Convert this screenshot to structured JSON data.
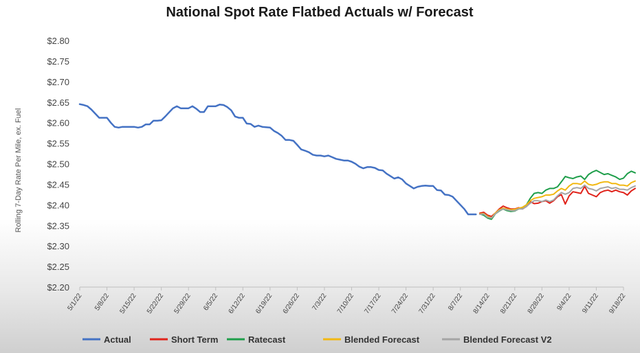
{
  "chart_data": {
    "type": "line",
    "title": "National Spot Rate Flatbed Actuals w/ Forecast",
    "xlabel": "",
    "ylabel": "Rolling 7-Day Rate Per Mile, ex. Fuel",
    "ylim": [
      2.2,
      2.8
    ],
    "y_tick_labels": [
      "$2.20",
      "$2.25",
      "$2.30",
      "$2.35",
      "$2.40",
      "$2.45",
      "$2.50",
      "$2.55",
      "$2.60",
      "$2.65",
      "$2.70",
      "$2.75",
      "$2.80"
    ],
    "x_start": "5/1/22",
    "x_tick_labels": [
      "5/1/22",
      "5/8/22",
      "5/15/22",
      "5/22/22",
      "5/29/22",
      "6/5/22",
      "6/12/22",
      "6/19/22",
      "6/26/22",
      "7/3/22",
      "7/10/22",
      "7/17/22",
      "7/24/22",
      "7/31/22",
      "8/7/22",
      "8/14/22",
      "8/21/22",
      "8/28/22",
      "9/4/22",
      "9/11/22",
      "9/18/22"
    ],
    "grid": false,
    "legend_position": "bottom",
    "series": [
      {
        "name": "Actual",
        "color": "#4472C4",
        "x_start_day": 0,
        "values": [
          2.645,
          2.643,
          2.64,
          2.632,
          2.622,
          2.612,
          2.612,
          2.612,
          2.6,
          2.59,
          2.588,
          2.59,
          2.59,
          2.59,
          2.59,
          2.588,
          2.59,
          2.596,
          2.596,
          2.605,
          2.605,
          2.606,
          2.615,
          2.625,
          2.635,
          2.64,
          2.635,
          2.635,
          2.635,
          2.64,
          2.634,
          2.626,
          2.626,
          2.64,
          2.64,
          2.64,
          2.644,
          2.643,
          2.638,
          2.63,
          2.615,
          2.612,
          2.612,
          2.598,
          2.597,
          2.59,
          2.593,
          2.59,
          2.589,
          2.588,
          2.58,
          2.575,
          2.568,
          2.558,
          2.558,
          2.556,
          2.546,
          2.535,
          2.532,
          2.528,
          2.522,
          2.52,
          2.52,
          2.518,
          2.52,
          2.516,
          2.512,
          2.51,
          2.508,
          2.508,
          2.505,
          2.5,
          2.493,
          2.489,
          2.492,
          2.492,
          2.49,
          2.485,
          2.484,
          2.476,
          2.47,
          2.464,
          2.467,
          2.462,
          2.452,
          2.446,
          2.44,
          2.444,
          2.446,
          2.447,
          2.446,
          2.446,
          2.436,
          2.435,
          2.425,
          2.424,
          2.42,
          2.41,
          2.4,
          2.39,
          2.377,
          2.377,
          2.377
        ]
      },
      {
        "name": "Short Term",
        "color": "#E0231B",
        "x_start_day": 103,
        "values": [
          2.38,
          2.382,
          2.375,
          2.372,
          2.38,
          2.39,
          2.397,
          2.393,
          2.39,
          2.39,
          2.393,
          2.39,
          2.396,
          2.408,
          2.403,
          2.404,
          2.408,
          2.41,
          2.404,
          2.41,
          2.42,
          2.425,
          2.402,
          2.422,
          2.432,
          2.43,
          2.428,
          2.445,
          2.428,
          2.424,
          2.42,
          2.43,
          2.434,
          2.436,
          2.432,
          2.436,
          2.432,
          2.43,
          2.424,
          2.434,
          2.44
        ]
      },
      {
        "name": "Ratecast",
        "color": "#1E9E4A",
        "x_start_day": 103,
        "values": [
          2.378,
          2.375,
          2.368,
          2.365,
          2.378,
          2.385,
          2.39,
          2.386,
          2.384,
          2.385,
          2.39,
          2.394,
          2.4,
          2.416,
          2.428,
          2.43,
          2.428,
          2.436,
          2.44,
          2.44,
          2.444,
          2.456,
          2.469,
          2.466,
          2.464,
          2.468,
          2.47,
          2.462,
          2.474,
          2.48,
          2.484,
          2.479,
          2.474,
          2.476,
          2.472,
          2.468,
          2.462,
          2.465,
          2.476,
          2.482,
          2.478
        ]
      },
      {
        "name": "Blended Forecast",
        "color": "#F2B812",
        "x_start_day": 103,
        "values": [
          2.378,
          2.379,
          2.372,
          2.368,
          2.38,
          2.388,
          2.392,
          2.39,
          2.388,
          2.389,
          2.392,
          2.394,
          2.4,
          2.41,
          2.416,
          2.418,
          2.42,
          2.424,
          2.424,
          2.426,
          2.434,
          2.44,
          2.436,
          2.446,
          2.452,
          2.452,
          2.45,
          2.458,
          2.45,
          2.448,
          2.45,
          2.454,
          2.456,
          2.456,
          2.452,
          2.452,
          2.448,
          2.448,
          2.446,
          2.454,
          2.458
        ]
      },
      {
        "name": "Blended Forecast V2",
        "color": "#A5A5A5",
        "x_start_day": 103,
        "values": [
          2.377,
          2.378,
          2.37,
          2.368,
          2.378,
          2.386,
          2.39,
          2.388,
          2.386,
          2.386,
          2.39,
          2.39,
          2.396,
          2.404,
          2.41,
          2.41,
          2.408,
          2.412,
          2.408,
          2.412,
          2.422,
          2.43,
          2.426,
          2.43,
          2.44,
          2.442,
          2.44,
          2.448,
          2.44,
          2.438,
          2.434,
          2.44,
          2.442,
          2.444,
          2.44,
          2.442,
          2.438,
          2.438,
          2.436,
          2.442,
          2.446
        ]
      }
    ]
  }
}
